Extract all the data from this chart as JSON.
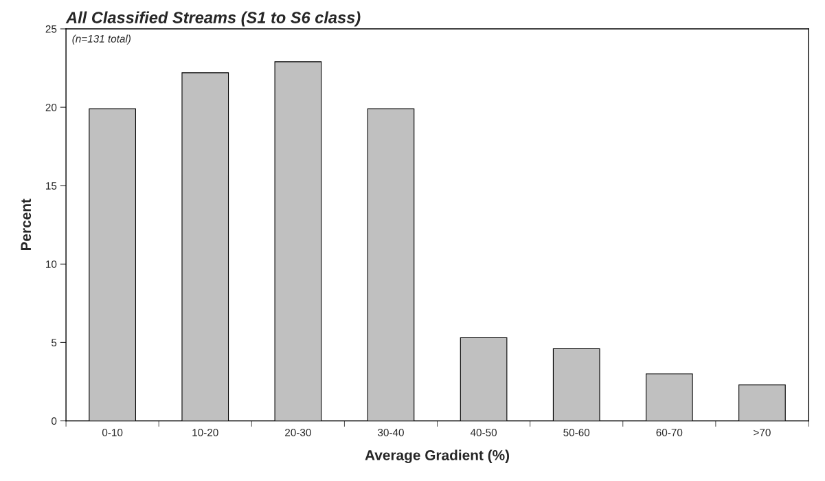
{
  "chart_data": {
    "type": "bar",
    "title": "All Classified Streams (S1 to S6 class)",
    "xlabel": "Average Gradient (%)",
    "ylabel": "Percent",
    "categories": [
      "0-10",
      "10-20",
      "20-30",
      "30-40",
      "40-50",
      "50-60",
      "60-70",
      ">70"
    ],
    "values": [
      19.9,
      22.2,
      22.9,
      19.9,
      5.3,
      4.6,
      3.0,
      2.3
    ],
    "color": "#c0c0c0",
    "ylim": [
      0,
      25
    ],
    "yticks": [
      0,
      5,
      10,
      15,
      20,
      25
    ],
    "grid": false,
    "legend": false,
    "annotations": [
      "(n=131 total)"
    ]
  }
}
